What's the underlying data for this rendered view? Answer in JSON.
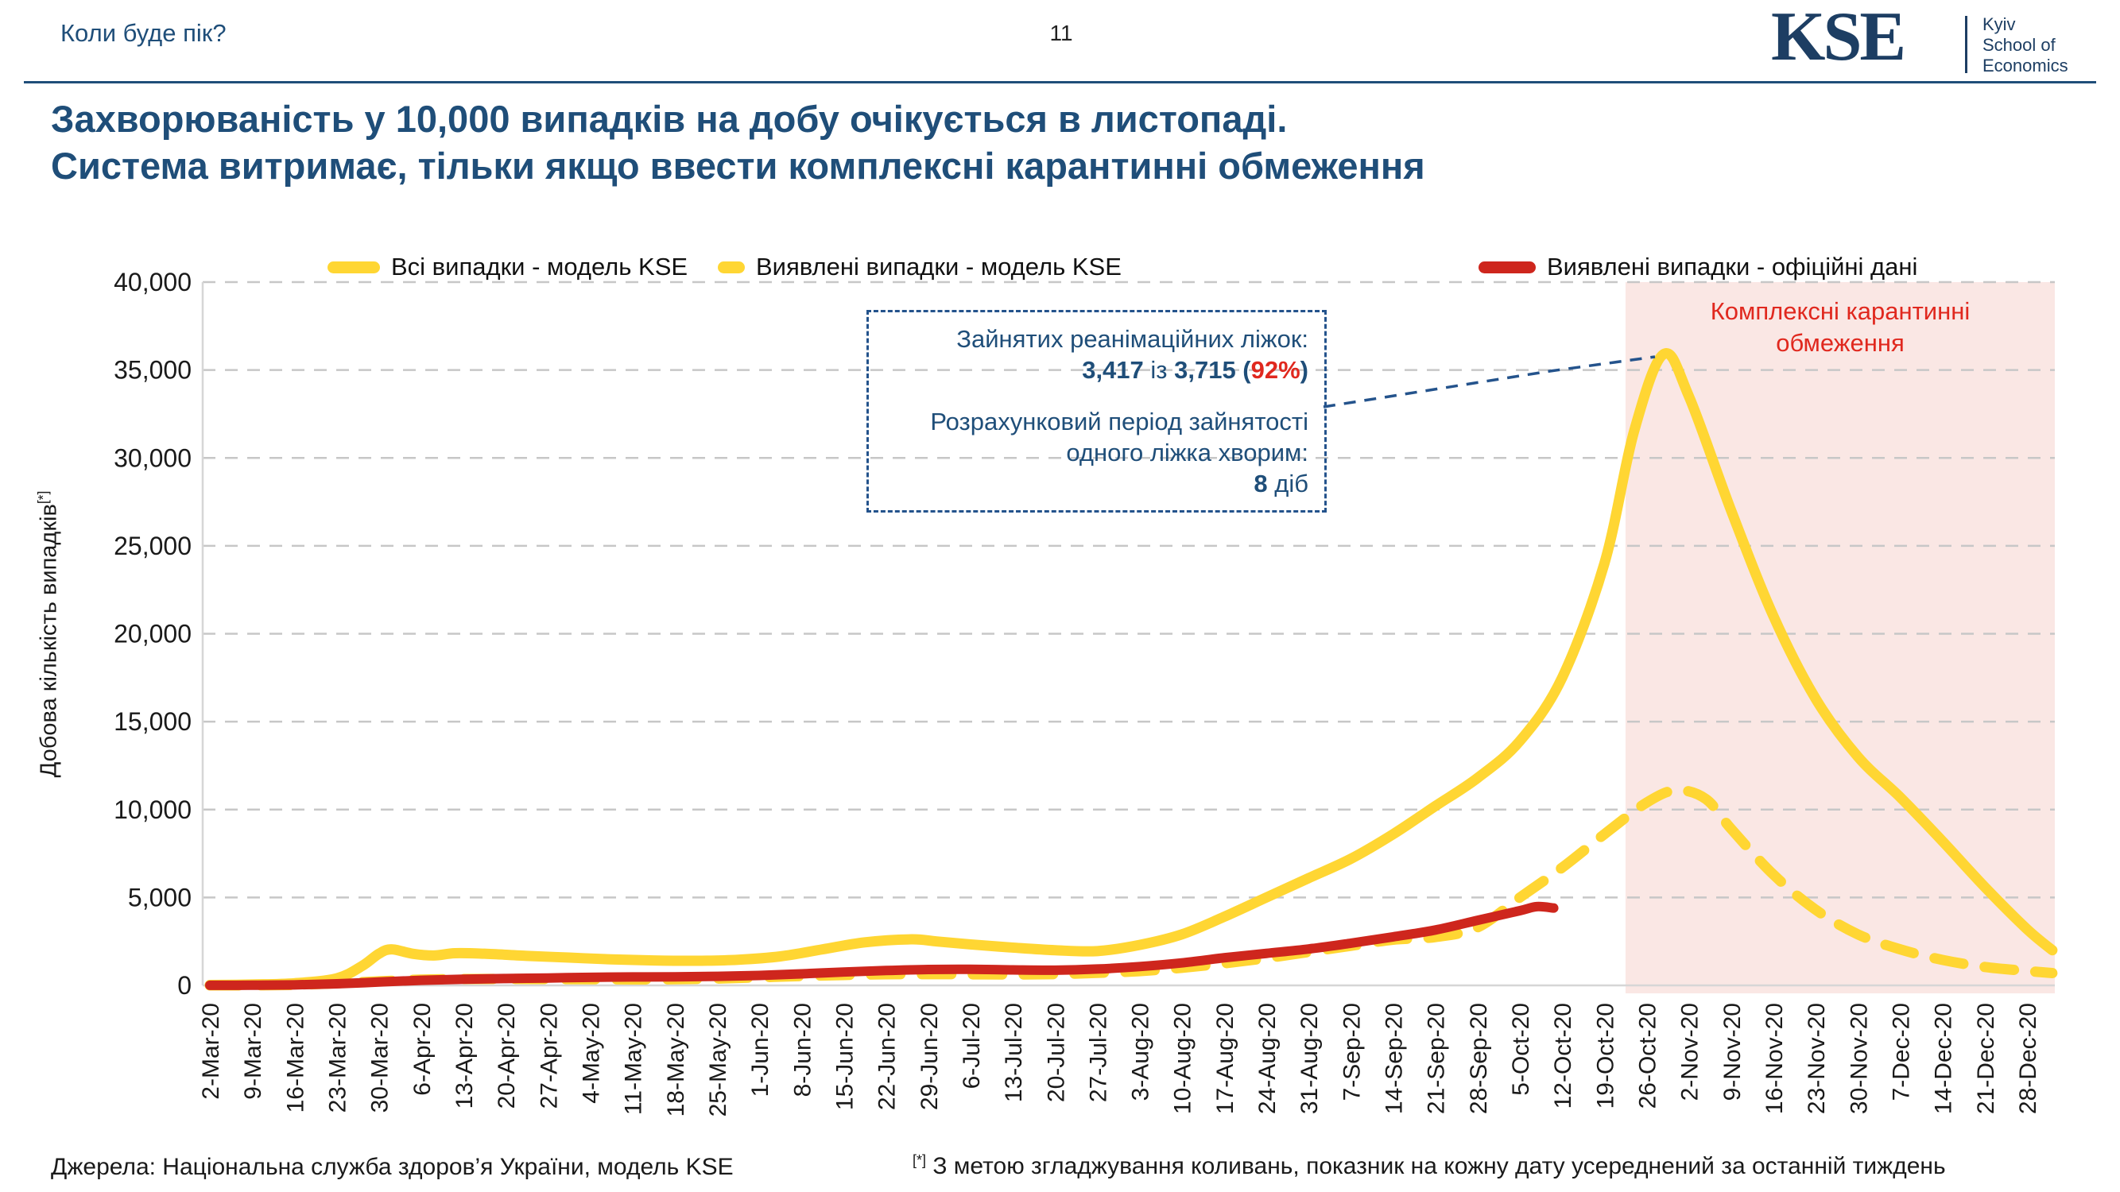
{
  "header": {
    "left_title": "Коли буде пік?",
    "page_number": "11",
    "logo": {
      "text": "KSE",
      "subtitle_lines": [
        "Kyiv",
        "School of",
        "Economics"
      ]
    }
  },
  "title": {
    "line1": "Захворюваність у 10,000 випадків на добу очікується в листопаді.",
    "line2": "Система витримає, тільки якщо ввести комплексні карантинні обмеження"
  },
  "legend": [
    {
      "label": "Всі випадки - модель KSE",
      "style": "solid",
      "color": "#FFD633"
    },
    {
      "label": "Виявлені випадки - модель KSE",
      "style": "dashed",
      "color": "#FFD633"
    },
    {
      "label": "Виявлені випадки - офіційні дані",
      "style": "solid",
      "color": "#CE261D"
    }
  ],
  "y_axis_title": {
    "text": "Добова кількість випадків",
    "sup": "[*]"
  },
  "annotation_box": {
    "line1": "Зайнятих реанімаційних ліжок:",
    "beds_occupied": "3,417",
    "of_word": " із ",
    "beds_total": "3,715",
    "open_paren": " (",
    "percent": "92%",
    "close_paren": ")",
    "line3": "Розрахунковий період зайнятості",
    "line4": "одного ліжка хворим:",
    "days_value": "8",
    "days_word": " діб"
  },
  "quarantine_label": {
    "line1": "Комплексні карантинні",
    "line2": "обмеження"
  },
  "footer": {
    "source": "Джерела: Національна служба здоров’я України, модель KSE",
    "footnote_marker": "[*]",
    "footnote": " З метою згладжування коливань, показник на кожну дату усереднений за останній тиждень"
  },
  "chart_data": {
    "type": "line",
    "title": "Захворюваність у 10,000 випадків на добу очікується в листопаді",
    "ylabel": "Добова кількість випадків[*]",
    "xlabel": "",
    "ylim": [
      0,
      40000
    ],
    "grid": true,
    "legend_position": "top",
    "categories": [
      "2-Mar-20",
      "9-Mar-20",
      "16-Mar-20",
      "23-Mar-20",
      "30-Mar-20",
      "6-Apr-20",
      "13-Apr-20",
      "20-Apr-20",
      "27-Apr-20",
      "4-May-20",
      "11-May-20",
      "18-May-20",
      "25-May-20",
      "1-Jun-20",
      "8-Jun-20",
      "15-Jun-20",
      "22-Jun-20",
      "29-Jun-20",
      "6-Jul-20",
      "13-Jul-20",
      "20-Jul-20",
      "27-Jul-20",
      "3-Aug-20",
      "10-Aug-20",
      "17-Aug-20",
      "24-Aug-20",
      "31-Aug-20",
      "7-Sep-20",
      "14-Sep-20",
      "21-Sep-20",
      "28-Sep-20",
      "5-Oct-20",
      "12-Oct-20",
      "19-Oct-20",
      "26-Oct-20",
      "2-Nov-20",
      "9-Nov-20",
      "16-Nov-20",
      "23-Nov-20",
      "30-Nov-20",
      "7-Dec-20",
      "14-Dec-20",
      "21-Dec-20",
      "28-Dec-20"
    ],
    "y_ticks": [
      {
        "value": 0,
        "label": "0"
      },
      {
        "value": 5000,
        "label": "5,000"
      },
      {
        "value": 10000,
        "label": "10,000"
      },
      {
        "value": 15000,
        "label": "15,000"
      },
      {
        "value": 20000,
        "label": "20,000"
      },
      {
        "value": 25000,
        "label": "25,000"
      },
      {
        "value": 30000,
        "label": "30,000"
      },
      {
        "value": 35000,
        "label": "35,000"
      },
      {
        "value": 40000,
        "label": "40,000"
      }
    ],
    "series": [
      {
        "name": "Всі випадки - модель KSE",
        "color": "#FFD633",
        "style": "solid",
        "points": [
          [
            0,
            20
          ],
          [
            1,
            50
          ],
          [
            2,
            120
          ],
          [
            3,
            400
          ],
          [
            3.6,
            1100
          ],
          [
            4,
            1800
          ],
          [
            4.3,
            2050
          ],
          [
            4.8,
            1800
          ],
          [
            5.3,
            1700
          ],
          [
            5.8,
            1830
          ],
          [
            6.5,
            1800
          ],
          [
            7.5,
            1680
          ],
          [
            8.5,
            1580
          ],
          [
            9.5,
            1480
          ],
          [
            10.5,
            1420
          ],
          [
            11.5,
            1400
          ],
          [
            12.5,
            1460
          ],
          [
            13.5,
            1650
          ],
          [
            14.5,
            2050
          ],
          [
            15.5,
            2450
          ],
          [
            16.6,
            2620
          ],
          [
            17.2,
            2500
          ],
          [
            18,
            2330
          ],
          [
            19,
            2150
          ],
          [
            20,
            2000
          ],
          [
            21,
            1950
          ],
          [
            22,
            2300
          ],
          [
            23,
            2900
          ],
          [
            24,
            3900
          ],
          [
            25,
            5000
          ],
          [
            26,
            6100
          ],
          [
            27,
            7200
          ],
          [
            28,
            8600
          ],
          [
            29,
            10200
          ],
          [
            30,
            11800
          ],
          [
            31,
            13900
          ],
          [
            32,
            17500
          ],
          [
            33,
            24000
          ],
          [
            33.7,
            31500
          ],
          [
            34.4,
            35900
          ],
          [
            35,
            33500
          ],
          [
            36,
            27000
          ],
          [
            37,
            21000
          ],
          [
            38,
            16300
          ],
          [
            39,
            13000
          ],
          [
            40,
            10700
          ],
          [
            41,
            8200
          ],
          [
            42,
            5600
          ],
          [
            43,
            3200
          ],
          [
            43.6,
            2000
          ]
        ]
      },
      {
        "name": "Виявлені випадки - модель KSE",
        "color": "#FFD633",
        "style": "dashed",
        "points": [
          [
            0,
            0
          ],
          [
            2,
            30
          ],
          [
            4,
            230
          ],
          [
            5,
            330
          ],
          [
            6,
            360
          ],
          [
            7,
            370
          ],
          [
            8,
            360
          ],
          [
            9,
            350
          ],
          [
            10,
            340
          ],
          [
            11,
            350
          ],
          [
            12,
            390
          ],
          [
            13,
            460
          ],
          [
            14,
            530
          ],
          [
            15,
            590
          ],
          [
            16,
            630
          ],
          [
            17,
            640
          ],
          [
            18,
            630
          ],
          [
            19,
            620
          ],
          [
            20,
            640
          ],
          [
            21,
            710
          ],
          [
            22,
            810
          ],
          [
            23,
            1000
          ],
          [
            24,
            1250
          ],
          [
            25,
            1550
          ],
          [
            26,
            1900
          ],
          [
            27,
            2250
          ],
          [
            28,
            2600
          ],
          [
            29,
            2750
          ],
          [
            30,
            3300
          ],
          [
            31,
            5000
          ],
          [
            32,
            6700
          ],
          [
            33,
            8600
          ],
          [
            34,
            10400
          ],
          [
            34.7,
            11100
          ],
          [
            35.4,
            10600
          ],
          [
            36,
            8900
          ],
          [
            37,
            6300
          ],
          [
            38,
            4300
          ],
          [
            39,
            2900
          ],
          [
            40,
            2050
          ],
          [
            41,
            1450
          ],
          [
            42,
            1050
          ],
          [
            43,
            820
          ],
          [
            43.6,
            700
          ]
        ]
      },
      {
        "name": "Виявлені випадки - офіційні дані",
        "color": "#CE261D",
        "style": "solid",
        "points": [
          [
            0,
            5
          ],
          [
            1,
            10
          ],
          [
            2,
            30
          ],
          [
            3,
            90
          ],
          [
            4,
            190
          ],
          [
            5,
            290
          ],
          [
            6,
            350
          ],
          [
            7,
            390
          ],
          [
            8,
            420
          ],
          [
            9,
            460
          ],
          [
            10,
            480
          ],
          [
            11,
            485
          ],
          [
            12,
            515
          ],
          [
            13,
            565
          ],
          [
            14,
            655
          ],
          [
            15,
            760
          ],
          [
            16,
            845
          ],
          [
            17,
            905
          ],
          [
            18,
            915
          ],
          [
            19,
            880
          ],
          [
            20,
            865
          ],
          [
            21,
            930
          ],
          [
            22,
            1070
          ],
          [
            23,
            1280
          ],
          [
            24,
            1570
          ],
          [
            25,
            1820
          ],
          [
            26,
            2070
          ],
          [
            27,
            2400
          ],
          [
            28,
            2760
          ],
          [
            29,
            3150
          ],
          [
            30,
            3700
          ],
          [
            31,
            4250
          ],
          [
            31.4,
            4480
          ],
          [
            31.8,
            4400
          ]
        ]
      }
    ],
    "shaded_region": {
      "start_index": 33.5,
      "color": "#fae7e4",
      "label": "Комплексні карантинні обмеження",
      "label_color": "#e0281e"
    },
    "annotations": {
      "icu_beds": "Зайнятих реанімаційних ліжок: 3,417 із 3,715 (92%)",
      "bed_period": "Розрахунковий період зайнятості одного ліжка хворим: 8 діб",
      "peak_value": 36000,
      "peak_date": "26-Oct-20"
    }
  }
}
